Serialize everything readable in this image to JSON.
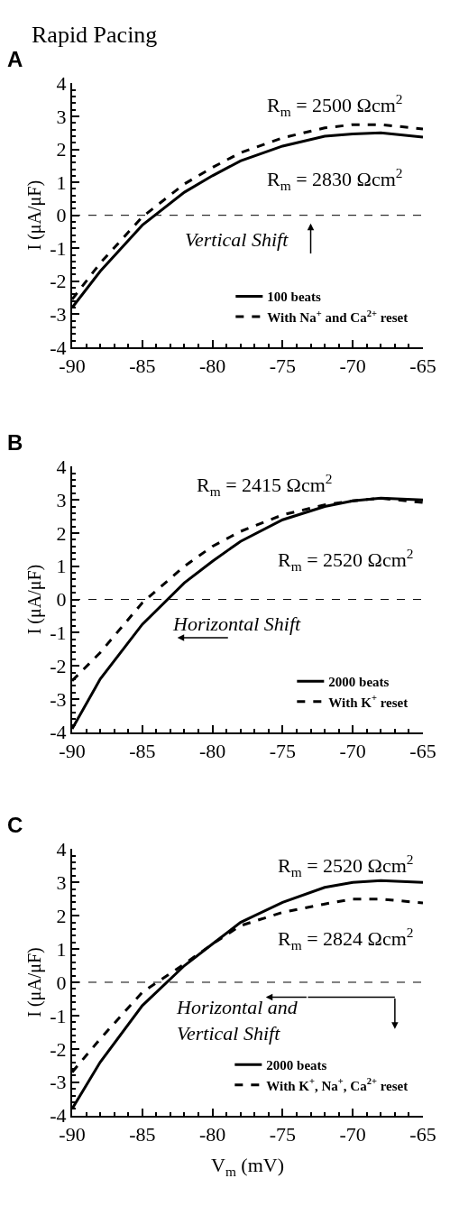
{
  "chart_data": [
    {
      "type": "line",
      "title": "Rapid Pacing",
      "subtitle": "A",
      "ylabel": "I (μA/μF)",
      "x": [
        -90,
        -88,
        -85,
        -82,
        -80,
        -78,
        -75,
        -72,
        -70,
        -68,
        -65
      ],
      "series": [
        {
          "name": "100 beats",
          "color": "#000000",
          "line_style": "solid",
          "values": [
            -2.8,
            -1.7,
            -0.3,
            0.7,
            1.2,
            1.65,
            2.1,
            2.4,
            2.47,
            2.5,
            2.37
          ]
        },
        {
          "name": "With Na$^{+}$ and Ca$^{2+}$ reset",
          "color": "#000000",
          "line_style": "dashed",
          "values": [
            -2.55,
            -1.45,
            -0.05,
            0.95,
            1.45,
            1.9,
            2.35,
            2.65,
            2.75,
            2.75,
            2.62
          ]
        }
      ],
      "xlim": [
        -90,
        -65
      ],
      "xticks": [
        -90,
        -85,
        -80,
        -75,
        -70,
        -65
      ],
      "ylim": [
        -4,
        4
      ],
      "yticks": [
        -4,
        -3,
        -2,
        -1,
        0,
        1,
        2,
        3,
        4
      ],
      "ref_lines": [
        {
          "axis": "y",
          "value": 0,
          "line_style": "dashed",
          "color": "#000000"
        }
      ],
      "annotations": [
        "R$_{m}$ = 2500 Ωcm$^{2}$",
        "R$_{m}$ = 2830 Ωcm$^{2}$",
        "Vertical Shift"
      ],
      "legend": "bottom right"
    },
    {
      "type": "line",
      "subtitle": "B",
      "ylabel": "I (μA/μF)",
      "x": [
        -90,
        -88,
        -85,
        -82,
        -80,
        -78,
        -75,
        -72,
        -70,
        -68,
        -65
      ],
      "series": [
        {
          "name": "2000 beats",
          "color": "#000000",
          "line_style": "solid",
          "values": [
            -3.9,
            -2.4,
            -0.75,
            0.5,
            1.15,
            1.75,
            2.4,
            2.8,
            2.97,
            3.05,
            3.0
          ]
        },
        {
          "name": "With K$^{+}$ reset",
          "color": "#000000",
          "line_style": "dashed",
          "values": [
            -2.45,
            -1.6,
            -0.1,
            1.0,
            1.6,
            2.05,
            2.55,
            2.85,
            2.97,
            3.05,
            2.92
          ]
        }
      ],
      "xlim": [
        -90,
        -65
      ],
      "xticks": [
        -90,
        -85,
        -80,
        -75,
        -70,
        -65
      ],
      "ylim": [
        -4,
        4
      ],
      "yticks": [
        -4,
        -3,
        -2,
        -1,
        0,
        1,
        2,
        3,
        4
      ],
      "ref_lines": [
        {
          "axis": "y",
          "value": 0,
          "line_style": "dashed",
          "color": "#000000"
        }
      ],
      "annotations": [
        "R$_{m}$ = 2415 Ωcm$^{2}$",
        "R$_{m}$ = 2520 Ωcm$^{2}$",
        "Horizontal Shift"
      ],
      "legend": "bottom right"
    },
    {
      "type": "line",
      "subtitle": "C",
      "ylabel": "I (μA/μF)",
      "xlabel": "V$_{m}$ (mV)",
      "x": [
        -90,
        -88,
        -85,
        -82,
        -80,
        -78,
        -75,
        -72,
        -70,
        -68,
        -65
      ],
      "series": [
        {
          "name": "2000 beats",
          "color": "#000000",
          "line_style": "solid",
          "values": [
            -3.8,
            -2.4,
            -0.7,
            0.5,
            1.15,
            1.8,
            2.4,
            2.85,
            3.0,
            3.05,
            3.0
          ]
        },
        {
          "name": "With K$^{+}$, Na$^{+}$, Ca$^{2+}$ reset",
          "color": "#000000",
          "line_style": "dashed",
          "values": [
            -2.7,
            -1.7,
            -0.3,
            0.55,
            1.15,
            1.7,
            2.1,
            2.35,
            2.5,
            2.5,
            2.38
          ]
        }
      ],
      "xlim": [
        -90,
        -65
      ],
      "xticks": [
        -90,
        -85,
        -80,
        -75,
        -70,
        -65
      ],
      "ylim": [
        -4,
        4
      ],
      "yticks": [
        -4,
        -3,
        -2,
        -1,
        0,
        1,
        2,
        3,
        4
      ],
      "ref_lines": [
        {
          "axis": "y",
          "value": 0,
          "line_style": "dashed",
          "color": "#000000"
        }
      ],
      "annotations": [
        "R$_{m}$ = 2520 Ωcm$^{2}$",
        "R$_{m}$ = 2824 Ωcm$^{2}$",
        "Horizontal and\nVertical Shift"
      ],
      "legend": "bottom right"
    }
  ]
}
